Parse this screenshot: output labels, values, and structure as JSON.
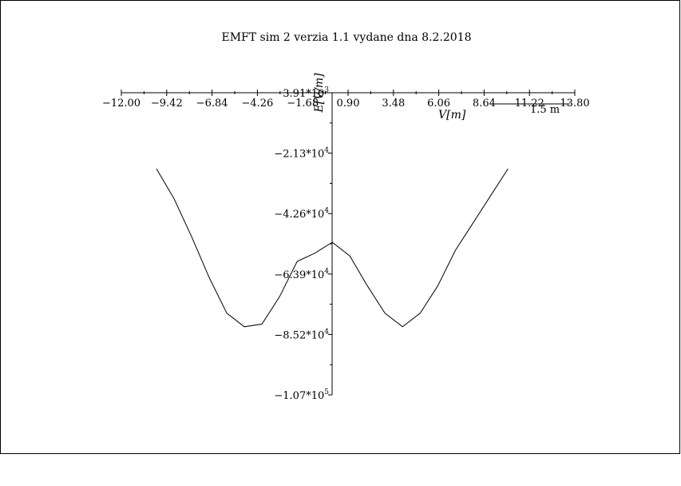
{
  "chart_data": {
    "type": "line",
    "title": "EMFT sim 2 verzia 1.1 vydane dna 8.2.2018",
    "xlabel": "V[m]",
    "ylabel": "E[V/m]",
    "xlim": [
      -12.0,
      13.8
    ],
    "ylim": [
      -107000,
      3910
    ],
    "x_ticks": [
      "-12.00",
      "-9.42",
      "-6.84",
      "-4.26",
      "-1.68",
      "0.90",
      "3.48",
      "6.06",
      "8.64",
      "11.22",
      "13.80"
    ],
    "y_ticks": [
      {
        "mantissa": "3.91*10",
        "exp": "3",
        "value": 3910
      },
      {
        "mantissa": "−2.13*10",
        "exp": "4",
        "value": -21300
      },
      {
        "mantissa": "−4.26*10",
        "exp": "4",
        "value": -42600
      },
      {
        "mantissa": "−6.39*10",
        "exp": "4",
        "value": -63900
      },
      {
        "mantissa": "−8.52*10",
        "exp": "4",
        "value": -85200
      },
      {
        "mantissa": "−1.07*10",
        "exp": "5",
        "value": -107000
      }
    ],
    "scale_bar_label": "1.5 m",
    "grid": false,
    "series": [
      {
        "x": [
          -10.0,
          -9.0,
          -8.0,
          -7.0,
          -6.0,
          -5.0,
          -4.0,
          -3.0,
          -2.0,
          -1.0,
          0.0,
          1.0,
          2.0,
          3.0,
          4.0,
          5.0,
          6.0,
          7.0,
          8.0,
          9.0,
          10.0
        ],
        "y": [
          -24000,
          -35000,
          -49000,
          -64000,
          -77000,
          -82000,
          -81000,
          -71000,
          -58000,
          -55000,
          -51000,
          -56000,
          -67000,
          -77000,
          -82000,
          -77000,
          -67000,
          -54000,
          -44000,
          -34000,
          -24000
        ]
      }
    ]
  }
}
